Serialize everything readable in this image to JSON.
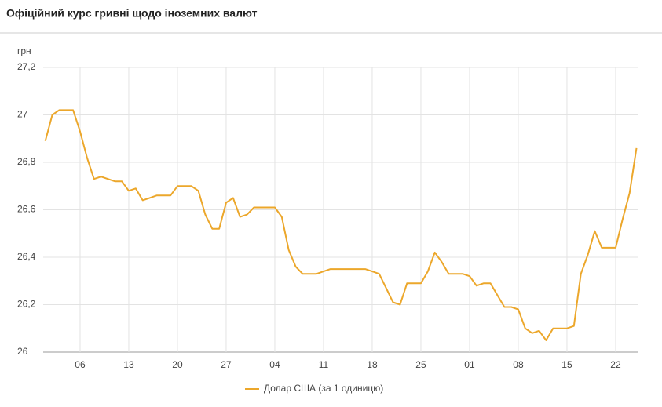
{
  "chart_data": {
    "type": "line",
    "title": "Офіційний курс гривні щодо іноземних валют",
    "y_label": "грн",
    "categories": [
      null,
      null,
      null,
      null,
      null,
      "06",
      null,
      null,
      null,
      null,
      null,
      null,
      "13",
      null,
      null,
      null,
      null,
      null,
      null,
      "20",
      null,
      null,
      null,
      null,
      null,
      null,
      "27",
      null,
      null,
      null,
      null,
      null,
      null,
      "04",
      null,
      null,
      null,
      null,
      null,
      null,
      "11",
      null,
      null,
      null,
      null,
      null,
      null,
      "18",
      null,
      null,
      null,
      null,
      null,
      null,
      "25",
      null,
      null,
      null,
      null,
      null,
      null,
      "01",
      null,
      null,
      null,
      null,
      null,
      null,
      "08",
      null,
      null,
      null,
      null,
      null,
      null,
      "15",
      null,
      null,
      null,
      null,
      null,
      null,
      "22",
      null,
      null,
      null
    ],
    "series": [
      {
        "name": "Долар США (за 1 одиницю)",
        "color": "#eca72b",
        "values": [
          26.89,
          27.0,
          27.02,
          27.02,
          27.02,
          26.93,
          26.82,
          26.73,
          26.74,
          26.73,
          26.72,
          26.72,
          26.68,
          26.69,
          26.64,
          26.65,
          26.66,
          26.66,
          26.66,
          26.7,
          26.7,
          26.7,
          26.68,
          26.58,
          26.52,
          26.52,
          26.63,
          26.65,
          26.57,
          26.58,
          26.61,
          26.61,
          26.61,
          26.61,
          26.57,
          26.43,
          26.36,
          26.33,
          26.33,
          26.33,
          26.34,
          26.35,
          26.35,
          26.35,
          26.35,
          26.35,
          26.35,
          26.34,
          26.33,
          26.27,
          26.21,
          26.2,
          26.29,
          26.29,
          26.29,
          26.34,
          26.42,
          26.38,
          26.33,
          26.33,
          26.33,
          26.32,
          26.28,
          26.29,
          26.29,
          26.24,
          26.19,
          26.19,
          26.18,
          26.1,
          26.08,
          26.09,
          26.05,
          26.1,
          26.1,
          26.1,
          26.11,
          26.33,
          26.41,
          26.51,
          26.44,
          26.44,
          26.44,
          26.56,
          26.67,
          26.86
        ]
      }
    ],
    "ylim": [
      26,
      27.2
    ],
    "yticks": [
      26,
      {
        "value": 26.2,
        "label": "26,2"
      },
      {
        "value": 26.4,
        "label": "26,4"
      },
      {
        "value": 26.6,
        "label": "26,6"
      },
      {
        "value": 26.8,
        "label": "26,8"
      },
      27,
      {
        "value": 27.2,
        "label": "27,2"
      }
    ],
    "grid": true
  }
}
